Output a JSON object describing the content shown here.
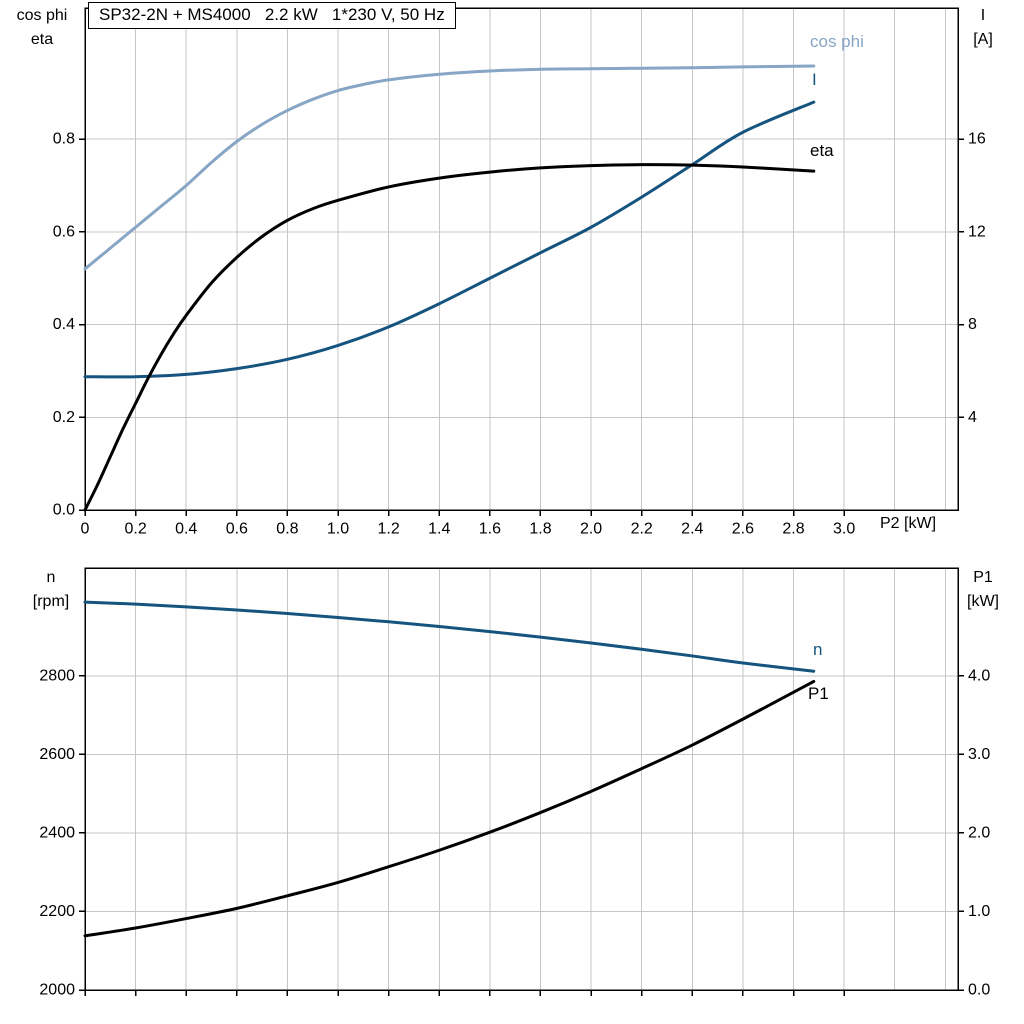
{
  "colors": {
    "light_blue": "#87a5c4",
    "dark_blue": "#15547f",
    "black": "#000000",
    "grid": "#c6c6c6",
    "frame": "#000000"
  },
  "top_chart_labels": {
    "y_left_line1": "cos phi",
    "y_left_line2": "eta",
    "y_right_line1": "I",
    "y_right_line2": "[A]",
    "x_label": "P2 [kW]"
  },
  "bottom_chart_labels": {
    "y_left_line1": "n",
    "y_left_line2": "[rpm]",
    "y_right_line1": "P1",
    "y_right_line2": "[kW]"
  },
  "chart_data": [
    {
      "type": "line",
      "title": "SP32-2N + MS4000   2.2 kW   1*230 V, 50 Hz",
      "xlabel": "P2 [kW]",
      "ylabel_left": "cos phi / eta",
      "ylabel_right": "I [A]",
      "xlim": [
        0,
        3.45
      ],
      "ylim_left": [
        0,
        1.083
      ],
      "ylim_right": [
        0,
        21.66
      ],
      "grid": true,
      "xticks": {
        "values": [
          0,
          0.2,
          0.4,
          0.6,
          0.8,
          1.0,
          1.2,
          1.4,
          1.6,
          1.8,
          2.0,
          2.2,
          2.4,
          2.6,
          2.8,
          3.0
        ],
        "labels": [
          "0",
          "0.2",
          "0.4",
          "0.6",
          "0.8",
          "1.0",
          "1.2",
          "1.4",
          "1.6",
          "1.8",
          "2.0",
          "2.2",
          "2.4",
          "2.6",
          "2.8",
          "3.0"
        ]
      },
      "yticks_left": {
        "values": [
          0,
          0.2,
          0.4,
          0.6,
          0.8
        ],
        "labels": [
          "0.0",
          "0.2",
          "0.4",
          "0.6",
          "0.8"
        ]
      },
      "yticks_right": {
        "values": [
          4,
          8,
          12,
          16
        ],
        "labels": [
          "4",
          "8",
          "12",
          "16"
        ]
      },
      "series": [
        {
          "name": "cos phi",
          "axis": "left",
          "color": "light_blue",
          "points": [
            [
              0,
              0.52
            ],
            [
              0.1,
              0.565
            ],
            [
              0.2,
              0.61
            ],
            [
              0.3,
              0.655
            ],
            [
              0.4,
              0.7
            ],
            [
              0.5,
              0.75
            ],
            [
              0.6,
              0.795
            ],
            [
              0.7,
              0.832
            ],
            [
              0.8,
              0.862
            ],
            [
              0.9,
              0.886
            ],
            [
              1.0,
              0.905
            ],
            [
              1.1,
              0.918
            ],
            [
              1.2,
              0.928
            ],
            [
              1.4,
              0.94
            ],
            [
              1.6,
              0.947
            ],
            [
              1.8,
              0.951
            ],
            [
              2.0,
              0.952
            ],
            [
              2.2,
              0.953
            ],
            [
              2.4,
              0.954
            ],
            [
              2.6,
              0.956
            ],
            [
              2.88,
              0.958
            ]
          ]
        },
        {
          "name": "I",
          "axis": "right",
          "color": "dark_blue",
          "points": [
            [
              0,
              5.75
            ],
            [
              0.2,
              5.75
            ],
            [
              0.4,
              5.85
            ],
            [
              0.6,
              6.1
            ],
            [
              0.8,
              6.5
            ],
            [
              1.0,
              7.1
            ],
            [
              1.2,
              7.9
            ],
            [
              1.4,
              8.9
            ],
            [
              1.6,
              10.0
            ],
            [
              1.8,
              11.1
            ],
            [
              2.0,
              12.2
            ],
            [
              2.2,
              13.5
            ],
            [
              2.4,
              14.9
            ],
            [
              2.6,
              16.3
            ],
            [
              2.88,
              17.6
            ]
          ]
        },
        {
          "name": "eta",
          "axis": "left",
          "color": "black",
          "points": [
            [
              0,
              0
            ],
            [
              0.05,
              0.055
            ],
            [
              0.1,
              0.115
            ],
            [
              0.15,
              0.175
            ],
            [
              0.2,
              0.23
            ],
            [
              0.25,
              0.285
            ],
            [
              0.3,
              0.335
            ],
            [
              0.35,
              0.38
            ],
            [
              0.4,
              0.42
            ],
            [
              0.5,
              0.49
            ],
            [
              0.6,
              0.545
            ],
            [
              0.7,
              0.59
            ],
            [
              0.8,
              0.625
            ],
            [
              0.9,
              0.65
            ],
            [
              1.0,
              0.668
            ],
            [
              1.2,
              0.697
            ],
            [
              1.4,
              0.716
            ],
            [
              1.6,
              0.729
            ],
            [
              1.8,
              0.738
            ],
            [
              2.0,
              0.743
            ],
            [
              2.2,
              0.745
            ],
            [
              2.4,
              0.744
            ],
            [
              2.6,
              0.74
            ],
            [
              2.88,
              0.731
            ]
          ]
        }
      ]
    },
    {
      "type": "line",
      "title": "",
      "xlabel": "",
      "ylabel_left": "n [rpm]",
      "ylabel_right": "P1 [kW]",
      "xlim": [
        0,
        3.45
      ],
      "ylim_left": [
        2000,
        3075
      ],
      "ylim_right": [
        0,
        5.375
      ],
      "grid": true,
      "xticks": {
        "values": [
          0,
          0.2,
          0.4,
          0.6,
          0.8,
          1.0,
          1.2,
          1.4,
          1.6,
          1.8,
          2.0,
          2.2,
          2.4,
          2.6,
          2.8,
          3.0
        ],
        "labels": [
          "",
          "",
          "",
          "",
          "",
          "",
          "",
          "",
          "",
          "",
          "",
          "",
          "",
          "",
          "",
          ""
        ]
      },
      "yticks_left": {
        "values": [
          2000,
          2200,
          2400,
          2600,
          2800
        ],
        "labels": [
          "2000",
          "2200",
          "2400",
          "2600",
          "2800"
        ]
      },
      "yticks_right": {
        "values": [
          0,
          1,
          2,
          3,
          4
        ],
        "labels": [
          "0.0",
          "1.0",
          "2.0",
          "3.0",
          "4.0"
        ]
      },
      "series": [
        {
          "name": "n",
          "axis": "left",
          "color": "dark_blue",
          "points": [
            [
              0,
              2988
            ],
            [
              0.2,
              2983
            ],
            [
              0.4,
              2976
            ],
            [
              0.6,
              2968
            ],
            [
              0.8,
              2959
            ],
            [
              1.0,
              2949
            ],
            [
              1.2,
              2938
            ],
            [
              1.4,
              2926
            ],
            [
              1.6,
              2913
            ],
            [
              1.8,
              2899
            ],
            [
              2.0,
              2884
            ],
            [
              2.2,
              2868
            ],
            [
              2.4,
              2851
            ],
            [
              2.6,
              2833
            ],
            [
              2.88,
              2812
            ]
          ]
        },
        {
          "name": "P1",
          "axis": "right",
          "color": "black",
          "points": [
            [
              0,
              0.69
            ],
            [
              0.2,
              0.79
            ],
            [
              0.4,
              0.91
            ],
            [
              0.6,
              1.04
            ],
            [
              0.8,
              1.2
            ],
            [
              1.0,
              1.37
            ],
            [
              1.2,
              1.57
            ],
            [
              1.4,
              1.78
            ],
            [
              1.6,
              2.01
            ],
            [
              1.8,
              2.26
            ],
            [
              2.0,
              2.53
            ],
            [
              2.2,
              2.82
            ],
            [
              2.4,
              3.12
            ],
            [
              2.6,
              3.45
            ],
            [
              2.88,
              3.93
            ]
          ]
        }
      ]
    }
  ]
}
